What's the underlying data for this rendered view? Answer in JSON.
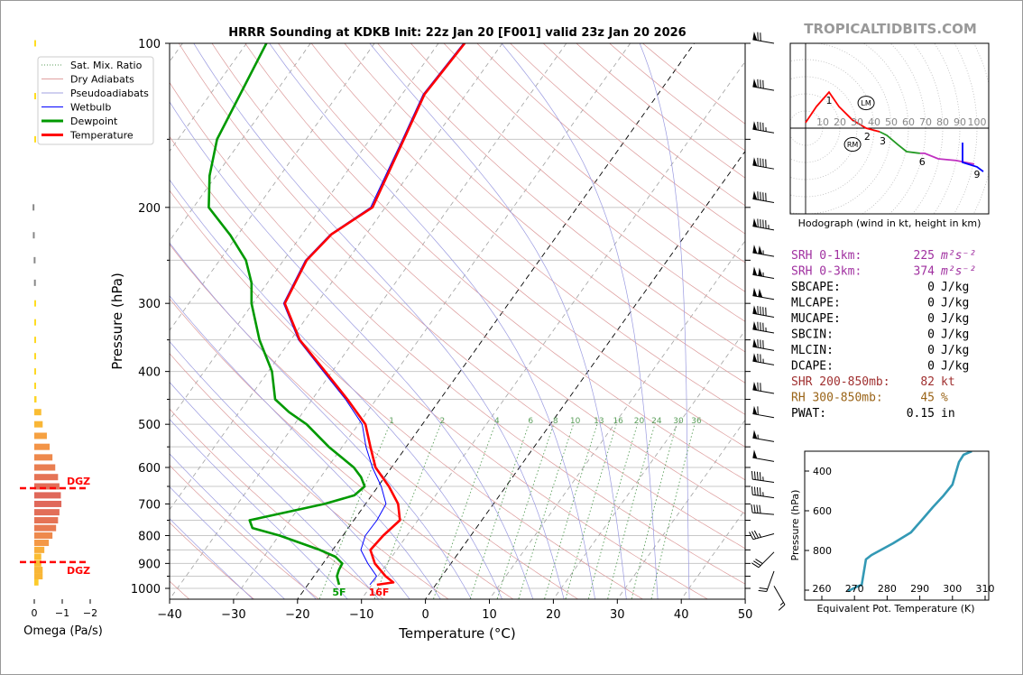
{
  "header": {
    "title": "HRRR Sounding at KDKB Init: 22z Jan 20 [F001] valid 23z Jan 20 2026",
    "brand": "TROPICALTIDBITS.COM"
  },
  "legend": {
    "items": [
      {
        "label": "Sat. Mix. Ratio",
        "color": "#5a9e5a",
        "style": "dotted"
      },
      {
        "label": "Dry Adiabats",
        "color": "#e0a0a0",
        "style": "solid"
      },
      {
        "label": "Pseudoadiabats",
        "color": "#a0a0e0",
        "style": "solid"
      },
      {
        "label": "Wetbulb",
        "color": "#0000ff",
        "style": "solid"
      },
      {
        "label": "Dewpoint",
        "color": "#009900",
        "style": "thick"
      },
      {
        "label": "Temperature",
        "color": "#ff0000",
        "style": "thick"
      }
    ]
  },
  "surface_labels": {
    "dewpoint": "5F",
    "temperature": "16F"
  },
  "dgz_label": "DGZ",
  "omega_panel": {
    "xlabel": "Omega (Pa/s)"
  },
  "hodograph_caption": "Hodograph (wind in kt, height in km)",
  "stats": [
    {
      "label": "SRH 0-1km:",
      "value": "225",
      "unit": "m²s⁻²",
      "color": "#a030a0"
    },
    {
      "label": "SRH 0-3km:",
      "value": "374",
      "unit": "m²s⁻²",
      "color": "#a030a0"
    },
    {
      "label": "SBCAPE:",
      "value": "0",
      "unit": "J/kg",
      "color": "#000000"
    },
    {
      "label": "MLCAPE:",
      "value": "0",
      "unit": "J/kg",
      "color": "#000000"
    },
    {
      "label": "MUCAPE:",
      "value": "0",
      "unit": "J/kg",
      "color": "#000000"
    },
    {
      "label": "SBCIN:",
      "value": "0",
      "unit": "J/kg",
      "color": "#000000"
    },
    {
      "label": "MLCIN:",
      "value": "0",
      "unit": "J/kg",
      "color": "#000000"
    },
    {
      "label": "DCAPE:",
      "value": "0",
      "unit": "J/kg",
      "color": "#000000"
    },
    {
      "label": "SHR 200-850mb:",
      "value": "82",
      "unit": "kt",
      "color": "#a03030"
    },
    {
      "label": "RH 300-850mb:",
      "value": "45",
      "unit": "%",
      "color": "#9a6418"
    },
    {
      "label": "PWAT:",
      "value": "0.15",
      "unit": "in",
      "color": "#000000"
    }
  ],
  "chart_data": [
    {
      "type": "line",
      "name": "skew-t",
      "title": "HRRR Sounding at KDKB Init: 22z Jan 20 [F001] valid 23z Jan 20 2026",
      "xlabel": "Temperature (°C)",
      "ylabel": "Pressure (hPa)",
      "xlim": [
        -40,
        50
      ],
      "ylim": [
        1050,
        100
      ],
      "yscale": "log",
      "x_ticks": [
        "−40",
        "−30",
        "−20",
        "−10",
        "0",
        "10",
        "20",
        "30",
        "40",
        "50"
      ],
      "x_tick_values": [
        -40,
        -30,
        -20,
        -10,
        0,
        10,
        20,
        30,
        40,
        50
      ],
      "y_ticks": [
        100,
        200,
        300,
        400,
        500,
        600,
        700,
        800,
        900,
        1000
      ],
      "isobars": [
        100,
        150,
        200,
        250,
        300,
        350,
        400,
        450,
        500,
        550,
        600,
        650,
        700,
        750,
        800,
        850,
        900,
        950,
        1000
      ],
      "highlighted_isotherms": [
        0,
        -20
      ],
      "mixing_ratio_labels": [
        "1",
        "2",
        "4",
        "6",
        "8",
        "10",
        "13",
        "16",
        "20",
        "24",
        "30",
        "36"
      ],
      "mixing_ratio_values": [
        1,
        2,
        4,
        6,
        8,
        10,
        13,
        16,
        20,
        24,
        30,
        36
      ],
      "series": [
        {
          "name": "Temperature",
          "color": "#ff0000",
          "pressure": [
            100,
            124,
            150,
            200,
            224,
            250,
            300,
            350,
            400,
            450,
            500,
            550,
            600,
            650,
            700,
            750,
            800,
            850,
            900,
            950,
            975,
            985
          ],
          "values": [
            -55.9,
            -56.5,
            -54.7,
            -52.0,
            -55.4,
            -56.4,
            -55.0,
            -48.6,
            -41.1,
            -34.5,
            -28.9,
            -25.6,
            -22.5,
            -18.3,
            -14.9,
            -12.8,
            -13.7,
            -14.1,
            -11.9,
            -8.8,
            -6.9,
            -9.2
          ]
        },
        {
          "name": "Dewpoint",
          "color": "#009900",
          "pressure": [
            100,
            150,
            175,
            200,
            225,
            250,
            275,
            300,
            350,
            400,
            450,
            475,
            500,
            550,
            600,
            625,
            650,
            675,
            700,
            750,
            775,
            800,
            850,
            875,
            900,
            925,
            950,
            985
          ],
          "values": [
            -86.9,
            -83.9,
            -81.0,
            -77.6,
            -71.1,
            -65.9,
            -62.5,
            -60.2,
            -54.9,
            -49.4,
            -45.8,
            -42.2,
            -38.1,
            -32.1,
            -25.9,
            -23.7,
            -22.1,
            -22.7,
            -26.4,
            -36.3,
            -35.0,
            -29.9,
            -22.0,
            -18.8,
            -17.0,
            -16.8,
            -16.4,
            -15.1
          ]
        },
        {
          "name": "Wetbulb",
          "color": "#0000ff",
          "pressure": [
            100,
            124,
            150,
            200,
            224,
            250,
            300,
            350,
            400,
            450,
            500,
            550,
            600,
            650,
            700,
            750,
            800,
            850,
            900,
            950,
            985
          ],
          "values": [
            -56.1,
            -56.7,
            -54.9,
            -52.3,
            -55.6,
            -56.6,
            -55.2,
            -48.8,
            -41.4,
            -34.8,
            -29.4,
            -26.3,
            -23.0,
            -19.5,
            -16.8,
            -16.4,
            -16.5,
            -15.6,
            -13.0,
            -10.2,
            -10.3
          ]
        }
      ],
      "wind_barbs": [
        {
          "p": 100,
          "dir": 280,
          "kt": 70
        },
        {
          "p": 122,
          "dir": 280,
          "kt": 80
        },
        {
          "p": 146,
          "dir": 280,
          "kt": 85
        },
        {
          "p": 170,
          "dir": 280,
          "kt": 90
        },
        {
          "p": 196,
          "dir": 280,
          "kt": 90
        },
        {
          "p": 220,
          "dir": 280,
          "kt": 95
        },
        {
          "p": 246,
          "dir": 280,
          "kt": 105
        },
        {
          "p": 270,
          "dir": 280,
          "kt": 105
        },
        {
          "p": 295,
          "dir": 280,
          "kt": 100
        },
        {
          "p": 318,
          "dir": 280,
          "kt": 90
        },
        {
          "p": 340,
          "dir": 280,
          "kt": 85
        },
        {
          "p": 366,
          "dir": 280,
          "kt": 80
        },
        {
          "p": 389,
          "dir": 280,
          "kt": 75
        },
        {
          "p": 439,
          "dir": 280,
          "kt": 70
        },
        {
          "p": 486,
          "dir": 280,
          "kt": 60
        },
        {
          "p": 538,
          "dir": 280,
          "kt": 55
        },
        {
          "p": 585,
          "dir": 280,
          "kt": 50
        },
        {
          "p": 639,
          "dir": 278,
          "kt": 45
        },
        {
          "p": 682,
          "dir": 278,
          "kt": 45
        },
        {
          "p": 732,
          "dir": 275,
          "kt": 40
        },
        {
          "p": 794,
          "dir": 255,
          "kt": 35
        },
        {
          "p": 858,
          "dir": 225,
          "kt": 30
        },
        {
          "p": 930,
          "dir": 200,
          "kt": 20
        },
        {
          "p": 990,
          "dir": 150,
          "kt": 15
        }
      ]
    },
    {
      "type": "bar",
      "name": "omega",
      "xlabel": "Omega (Pa/s)",
      "xlim": [
        0.3,
        -2
      ],
      "x_ticks": [
        "0",
        "−1",
        "−2"
      ],
      "x_tick_values": [
        0,
        -1,
        -2
      ],
      "dgz_pressure": [
        655,
        895
      ],
      "color_stops": {
        "weak": "#ffe020",
        "moderate": "#f59a45",
        "strong": "#e0685a",
        "positive": "#888888"
      },
      "pressure": [
        100,
        125,
        150,
        200,
        225,
        250,
        275,
        300,
        325,
        350,
        375,
        400,
        425,
        450,
        475,
        500,
        525,
        550,
        575,
        600,
        625,
        650,
        675,
        700,
        725,
        750,
        775,
        800,
        825,
        850,
        875,
        900,
        925,
        950,
        975
      ],
      "values": [
        -0.02,
        -0.02,
        -0.02,
        0.06,
        0.05,
        0.02,
        0.01,
        -0.02,
        -0.03,
        -0.05,
        -0.05,
        -0.06,
        -0.06,
        -0.08,
        -0.25,
        -0.3,
        -0.45,
        -0.55,
        -0.65,
        -0.75,
        -0.85,
        -0.9,
        -0.95,
        -0.97,
        -0.9,
        -0.85,
        -0.78,
        -0.65,
        -0.52,
        -0.36,
        -0.25,
        -0.25,
        -0.3,
        -0.3,
        -0.15
      ]
    },
    {
      "type": "line",
      "name": "hodograph",
      "xlabel": "Hodograph (wind in kt, height in km)",
      "ring_labels": [
        "10",
        "20",
        "30",
        "40",
        "50",
        "60",
        "70",
        "80",
        "90",
        "100"
      ],
      "series": [
        {
          "color": "#ff0000",
          "u": [
            0,
            6.3,
            13.7,
            19.5,
            27.4,
            35.3,
            43.2
          ],
          "v": [
            3.2,
            12.6,
            21,
            12.6,
            4.7,
            0,
            -2.1
          ]
        },
        {
          "color": "#229922",
          "u": [
            43.2,
            47.4,
            53.7,
            58.9,
            66.8
          ],
          "v": [
            -2.1,
            -4.2,
            -9.5,
            -13.7,
            -14.7
          ]
        },
        {
          "color": "#c030c0",
          "u": [
            66.8,
            69.5,
            77.4,
            87.9,
            98.4
          ],
          "v": [
            -14.7,
            -14.7,
            -17.9,
            -18.9,
            -21
          ]
        },
        {
          "color": "#0000ff",
          "u": [
            91.6,
            91.6,
            100,
            103.7
          ],
          "v": [
            -8.4,
            -20,
            -22.6,
            -25.3
          ]
        }
      ],
      "height_labels": [
        {
          "label": "1",
          "u": 13.7,
          "v": 21
        },
        {
          "label": "2",
          "u": 36,
          "v": 0
        },
        {
          "label": "3",
          "u": 45,
          "v": -2.6
        },
        {
          "label": "6",
          "u": 68,
          "v": -14.7
        },
        {
          "label": "9",
          "u": 100,
          "v": -22
        }
      ],
      "storm_motion": [
        {
          "label": "LM",
          "u": 35.3,
          "v": 14.7
        },
        {
          "label": "RM",
          "u": 27.4,
          "v": -9.5
        }
      ]
    },
    {
      "type": "line",
      "name": "theta-e",
      "xlabel": "Equivalent Pot. Temperature (K)",
      "ylabel": "Pressure (hPa)",
      "xlim": [
        255,
        311
      ],
      "ylim": [
        1050,
        300
      ],
      "x_ticks": [
        "260",
        "270",
        "280",
        "290",
        "300",
        "310"
      ],
      "y_ticks": [
        "400",
        "600",
        "800"
      ],
      "color": "#3399b5",
      "pressure": [
        300,
        318,
        355,
        400,
        468,
        523,
        582,
        636,
        709,
        764,
        823,
        845,
        973,
        982,
        1005
      ],
      "values": [
        305.9,
        303.4,
        302.0,
        301.2,
        300.0,
        297.3,
        294.0,
        291.2,
        287.3,
        281.8,
        275.2,
        273.5,
        272.2,
        270.8,
        268.0
      ]
    }
  ]
}
